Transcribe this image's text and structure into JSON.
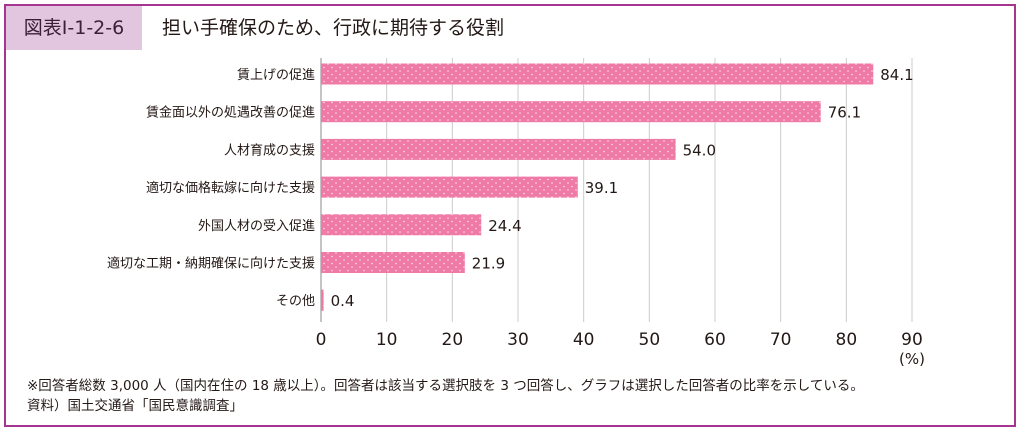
{
  "figure": {
    "label": "図表Ⅰ-1-2-6",
    "title": "担い手確保のため、行政に期待する役割"
  },
  "chart_data": {
    "type": "bar",
    "orientation": "horizontal",
    "categories": [
      "賃上げの促進",
      "賃金面以外の処遇改善の促進",
      "人材育成の支援",
      "適切な価格転嫁に向けた支援",
      "外国人材の受入促進",
      "適切な工期・納期確保に向けた支援",
      "その他"
    ],
    "values": [
      84.1,
      76.1,
      54.0,
      39.1,
      24.4,
      21.9,
      0.4
    ],
    "value_labels": [
      "84.1",
      "76.1",
      "54.0",
      "39.1",
      "24.4",
      "21.9",
      "0.4"
    ],
    "xlim": [
      0,
      90
    ],
    "xticks": [
      0,
      10,
      20,
      30,
      40,
      50,
      60,
      70,
      80,
      90
    ],
    "xunit": "(%)",
    "grid": "vertical",
    "bar_color": "#ef7aa6",
    "pattern_dot_color": "#ffffff"
  },
  "notes": {
    "note": "※回答者総数 3,000 人（国内在住の 18 歳以上）。回答者は該当する選択肢を 3 つ回答し、グラフは選択した回答者の比率を示している。",
    "source": "資料）国土交通省「国民意識調査」"
  },
  "colors": {
    "frame": "#a5368f",
    "label_bg": "#e2c5de",
    "grid": "#cccccc"
  }
}
